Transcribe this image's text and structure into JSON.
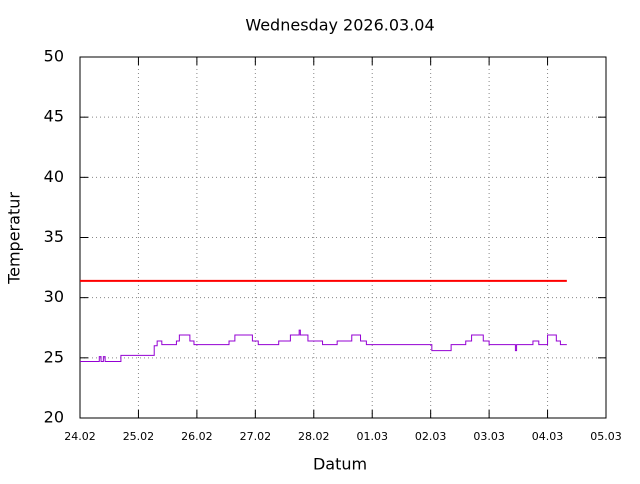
{
  "chart_data": {
    "type": "line",
    "title": "Wednesday 2026.03.04",
    "xlabel": "Datum",
    "ylabel": "Temperatur",
    "xlim": [
      0,
      9
    ],
    "xticks": [
      {
        "value": 0,
        "label": "24.02"
      },
      {
        "value": 1,
        "label": "25.02"
      },
      {
        "value": 2,
        "label": "26.02"
      },
      {
        "value": 3,
        "label": "27.02"
      },
      {
        "value": 4,
        "label": "28.02"
      },
      {
        "value": 5,
        "label": "01.03"
      },
      {
        "value": 6,
        "label": "02.03"
      },
      {
        "value": 7,
        "label": "03.03"
      },
      {
        "value": 8,
        "label": "04.03"
      },
      {
        "value": 9,
        "label": "05.03"
      }
    ],
    "ylim": [
      20,
      50
    ],
    "yticks": [
      20,
      25,
      30,
      35,
      40,
      45,
      50
    ],
    "grid": true,
    "series": [
      {
        "color": "#9400d3",
        "width": 1,
        "x": [
          0,
          0.33,
          0.33,
          0.36,
          0.36,
          0.4,
          0.4,
          0.43,
          0.43,
          0.7,
          0.7,
          1.27,
          1.27,
          1.32,
          1.32,
          1.4,
          1.4,
          1.65,
          1.65,
          1.7,
          1.7,
          1.88,
          1.88,
          1.95,
          1.95,
          2.55,
          2.55,
          2.65,
          2.65,
          2.95,
          2.95,
          3.05,
          3.05,
          3.4,
          3.4,
          3.6,
          3.6,
          3.75,
          3.75,
          3.77,
          3.77,
          3.9,
          3.9,
          4.15,
          4.15,
          4.4,
          4.4,
          4.65,
          4.65,
          4.8,
          4.8,
          4.9,
          4.9,
          6.02,
          6.02,
          6.35,
          6.35,
          6.6,
          6.6,
          6.7,
          6.7,
          6.9,
          6.9,
          7.0,
          7.0,
          7.45,
          7.45,
          7.47,
          7.47,
          7.75,
          7.75,
          7.85,
          7.85,
          8.0,
          8.0,
          8.15,
          8.15,
          8.22,
          8.22,
          8.33
        ],
        "values": [
          24.7,
          24.7,
          25.1,
          25.1,
          24.7,
          24.7,
          25.1,
          25.1,
          24.7,
          24.7,
          25.2,
          25.2,
          26.0,
          26.0,
          26.4,
          26.4,
          26.1,
          26.1,
          26.4,
          26.4,
          26.9,
          26.9,
          26.4,
          26.4,
          26.1,
          26.1,
          26.4,
          26.4,
          26.9,
          26.9,
          26.4,
          26.4,
          26.1,
          26.1,
          26.4,
          26.4,
          26.9,
          26.9,
          27.3,
          27.3,
          26.9,
          26.9,
          26.4,
          26.4,
          26.1,
          26.1,
          26.4,
          26.4,
          26.9,
          26.9,
          26.4,
          26.4,
          26.1,
          26.1,
          25.6,
          25.6,
          26.1,
          26.1,
          26.4,
          26.4,
          26.9,
          26.9,
          26.4,
          26.4,
          26.1,
          26.1,
          25.6,
          25.6,
          26.1,
          26.1,
          26.4,
          26.4,
          26.1,
          26.1,
          26.9,
          26.9,
          26.4,
          26.4,
          26.1,
          26.1
        ]
      },
      {
        "color": "#ff0000",
        "width": 2,
        "x": [
          0,
          8.33
        ],
        "values": [
          31.4,
          31.4
        ]
      }
    ]
  }
}
